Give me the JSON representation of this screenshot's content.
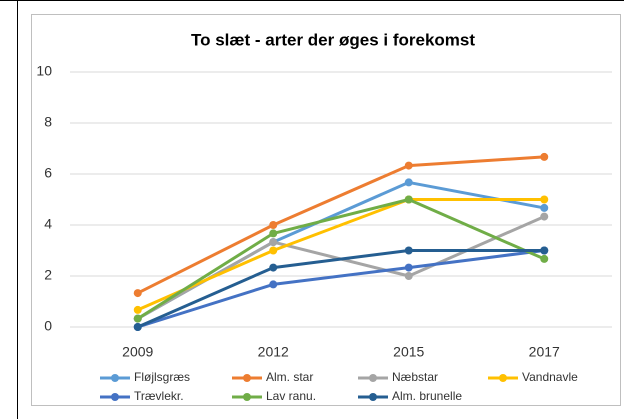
{
  "chart_data": {
    "type": "line",
    "title": "To slæt - arter der øges i forekomst",
    "categories": [
      "2009",
      "2012",
      "2015",
      "2017"
    ],
    "series": [
      {
        "name": "Fløjlsgræs",
        "color": "#5b9bd5",
        "values": [
          0.33,
          3.33,
          5.67,
          4.67
        ]
      },
      {
        "name": "Alm. star",
        "color": "#ed7d31",
        "values": [
          1.33,
          4,
          6.33,
          6.67
        ]
      },
      {
        "name": "Næbstar",
        "color": "#a5a5a5",
        "values": [
          0.33,
          3.33,
          2,
          4.33
        ]
      },
      {
        "name": "Vandnavle",
        "color": "#ffc000",
        "values": [
          0.67,
          3,
          5,
          5
        ]
      },
      {
        "name": "Trævlekr.",
        "color": "#4472c4",
        "values": [
          0,
          1.67,
          2.33,
          3
        ]
      },
      {
        "name": "Lav ranu.",
        "color": "#70ad47",
        "values": [
          0.33,
          3.67,
          5,
          2.67
        ]
      },
      {
        "name": "Alm. brunelle",
        "color": "#255e91",
        "values": [
          0,
          2.33,
          3,
          3
        ]
      }
    ],
    "ylim": [
      0,
      10
    ],
    "yticks": [
      0,
      2,
      4,
      6,
      8,
      10
    ],
    "grid": true,
    "legend": "bottom"
  }
}
